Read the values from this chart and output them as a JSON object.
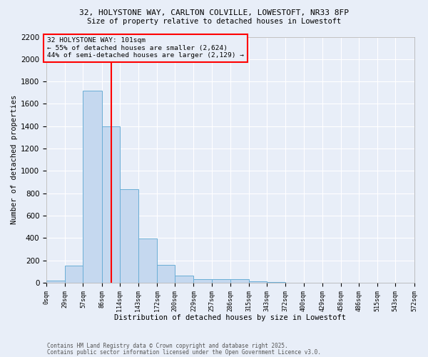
{
  "title_line1": "32, HOLYSTONE WAY, CARLTON COLVILLE, LOWESTOFT, NR33 8FP",
  "title_line2": "Size of property relative to detached houses in Lowestoft",
  "xlabel": "Distribution of detached houses by size in Lowestoft",
  "ylabel": "Number of detached properties",
  "bin_edges": [
    0,
    29,
    57,
    86,
    114,
    143,
    172,
    200,
    229,
    257,
    286,
    315,
    343,
    372,
    400,
    429,
    458,
    486,
    515,
    543,
    572
  ],
  "bar_heights": [
    20,
    155,
    1720,
    1400,
    835,
    395,
    160,
    65,
    35,
    30,
    30,
    15,
    10,
    0,
    0,
    0,
    0,
    0,
    0,
    0
  ],
  "bar_color": "#c5d8ef",
  "bar_edge_color": "#6aaed6",
  "vline_x": 101,
  "vline_color": "red",
  "annotation_text": "32 HOLYSTONE WAY: 101sqm\n← 55% of detached houses are smaller (2,624)\n44% of semi-detached houses are larger (2,129) →",
  "annotation_box_color": "red",
  "ylim": [
    0,
    2200
  ],
  "yticks": [
    0,
    200,
    400,
    600,
    800,
    1000,
    1200,
    1400,
    1600,
    1800,
    2000,
    2200
  ],
  "background_color": "#e8eef8",
  "grid_color": "white",
  "footer_line1": "Contains HM Land Registry data © Crown copyright and database right 2025.",
  "footer_line2": "Contains public sector information licensed under the Open Government Licence v3.0.",
  "tick_labels": [
    "0sqm",
    "29sqm",
    "57sqm",
    "86sqm",
    "114sqm",
    "143sqm",
    "172sqm",
    "200sqm",
    "229sqm",
    "257sqm",
    "286sqm",
    "315sqm",
    "343sqm",
    "372sqm",
    "400sqm",
    "429sqm",
    "458sqm",
    "486sqm",
    "515sqm",
    "543sqm",
    "572sqm"
  ]
}
